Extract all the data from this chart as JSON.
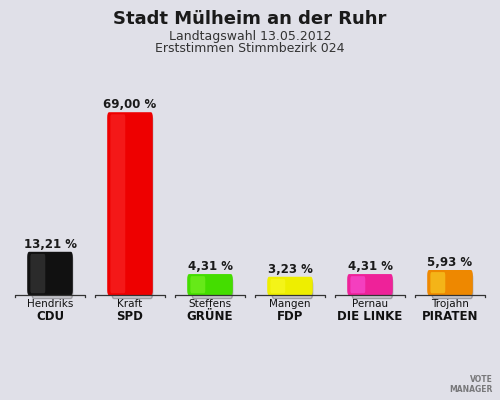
{
  "title": "Stadt Mülheim an der Ruhr",
  "subtitle1": "Landtagswahl 13.05.2012",
  "subtitle2": "Erststimmen Stimmbezirk 024",
  "candidates": [
    "Hendriks",
    "Kraft",
    "Steffens",
    "Mangen",
    "Pernau",
    "Trojahn"
  ],
  "parties": [
    "CDU",
    "SPD",
    "GRÜNE",
    "FDP",
    "DIE LINKE",
    "PIRATEN"
  ],
  "values": [
    13.21,
    69.0,
    4.31,
    3.23,
    4.31,
    5.93
  ],
  "labels": [
    "13,21 %",
    "69,00 %",
    "4,31 %",
    "3,23 %",
    "4,31 %",
    "5,93 %"
  ],
  "bar_colors": [
    "#111111",
    "#ee0000",
    "#44dd00",
    "#eeee00",
    "#ee2299",
    "#ee8800"
  ],
  "highlight_colors": [
    "#555555",
    "#ff6666",
    "#99ff55",
    "#ffff88",
    "#ff77cc",
    "#ffcc55"
  ],
  "bg_color": "#e0e0e8",
  "title_fontsize": 13,
  "subtitle_fontsize": 9,
  "value_fontsize": 8.5,
  "candidate_fontsize": 7.5,
  "party_fontsize": 8.5
}
